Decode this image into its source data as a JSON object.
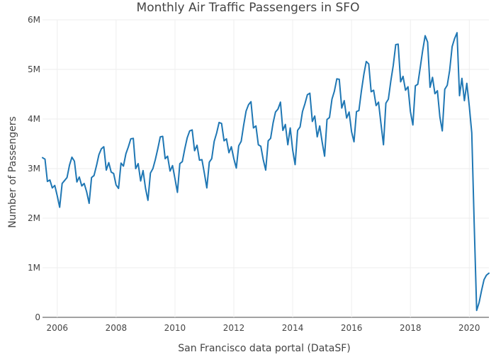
{
  "chart_data": {
    "type": "line",
    "title": "Monthly Air Traffic Passengers in SFO",
    "xlabel": "San Francisco data portal (DataSF)",
    "ylabel": "Number of Passengers",
    "xlim": [
      "2005-07",
      "2020-09"
    ],
    "ylim": [
      0,
      6000000
    ],
    "x_ticks": [
      {
        "value": "2006-01",
        "label": "2006"
      },
      {
        "value": "2008-01",
        "label": "2008"
      },
      {
        "value": "2010-01",
        "label": "2010"
      },
      {
        "value": "2012-01",
        "label": "2012"
      },
      {
        "value": "2014-01",
        "label": "2014"
      },
      {
        "value": "2016-01",
        "label": "2016"
      },
      {
        "value": "2018-01",
        "label": "2018"
      },
      {
        "value": "2020-01",
        "label": "2020"
      }
    ],
    "y_ticks": [
      {
        "value": 0,
        "label": "0"
      },
      {
        "value": 1000000,
        "label": "1M"
      },
      {
        "value": 2000000,
        "label": "2M"
      },
      {
        "value": 3000000,
        "label": "3M"
      },
      {
        "value": 4000000,
        "label": "4M"
      },
      {
        "value": 5000000,
        "label": "5M"
      },
      {
        "value": 6000000,
        "label": "6M"
      }
    ],
    "grid": true,
    "series": [
      {
        "color": "#1f77b4",
        "x": [
          "2005-07",
          "2005-08",
          "2005-09",
          "2005-10",
          "2005-11",
          "2005-12",
          "2006-01",
          "2006-02",
          "2006-03",
          "2006-04",
          "2006-05",
          "2006-06",
          "2006-07",
          "2006-08",
          "2006-09",
          "2006-10",
          "2006-11",
          "2006-12",
          "2007-01",
          "2007-02",
          "2007-03",
          "2007-04",
          "2007-05",
          "2007-06",
          "2007-07",
          "2007-08",
          "2007-09",
          "2007-10",
          "2007-11",
          "2007-12",
          "2008-01",
          "2008-02",
          "2008-03",
          "2008-04",
          "2008-05",
          "2008-06",
          "2008-07",
          "2008-08",
          "2008-09",
          "2008-10",
          "2008-11",
          "2008-12",
          "2009-01",
          "2009-02",
          "2009-03",
          "2009-04",
          "2009-05",
          "2009-06",
          "2009-07",
          "2009-08",
          "2009-09",
          "2009-10",
          "2009-11",
          "2009-12",
          "2010-01",
          "2010-02",
          "2010-03",
          "2010-04",
          "2010-05",
          "2010-06",
          "2010-07",
          "2010-08",
          "2010-09",
          "2010-10",
          "2010-11",
          "2010-12",
          "2011-01",
          "2011-02",
          "2011-03",
          "2011-04",
          "2011-05",
          "2011-06",
          "2011-07",
          "2011-08",
          "2011-09",
          "2011-10",
          "2011-11",
          "2011-12",
          "2012-01",
          "2012-02",
          "2012-03",
          "2012-04",
          "2012-05",
          "2012-06",
          "2012-07",
          "2012-08",
          "2012-09",
          "2012-10",
          "2012-11",
          "2012-12",
          "2013-01",
          "2013-02",
          "2013-03",
          "2013-04",
          "2013-05",
          "2013-06",
          "2013-07",
          "2013-08",
          "2013-09",
          "2013-10",
          "2013-11",
          "2013-12",
          "2014-01",
          "2014-02",
          "2014-03",
          "2014-04",
          "2014-05",
          "2014-06",
          "2014-07",
          "2014-08",
          "2014-09",
          "2014-10",
          "2014-11",
          "2014-12",
          "2015-01",
          "2015-02",
          "2015-03",
          "2015-04",
          "2015-05",
          "2015-06",
          "2015-07",
          "2015-08",
          "2015-09",
          "2015-10",
          "2015-11",
          "2015-12",
          "2016-01",
          "2016-02",
          "2016-03",
          "2016-04",
          "2016-05",
          "2016-06",
          "2016-07",
          "2016-08",
          "2016-09",
          "2016-10",
          "2016-11",
          "2016-12",
          "2017-01",
          "2017-02",
          "2017-03",
          "2017-04",
          "2017-05",
          "2017-06",
          "2017-07",
          "2017-08",
          "2017-09",
          "2017-10",
          "2017-11",
          "2017-12",
          "2018-01",
          "2018-02",
          "2018-03",
          "2018-04",
          "2018-05",
          "2018-06",
          "2018-07",
          "2018-08",
          "2018-09",
          "2018-10",
          "2018-11",
          "2018-12",
          "2019-01",
          "2019-02",
          "2019-03",
          "2019-04",
          "2019-05",
          "2019-06",
          "2019-07",
          "2019-08",
          "2019-09",
          "2019-10",
          "2019-11",
          "2019-12",
          "2020-01",
          "2020-02",
          "2020-03",
          "2020-04",
          "2020-05",
          "2020-06",
          "2020-07",
          "2020-08",
          "2020-09"
        ],
        "values": [
          3220000,
          3190000,
          2740000,
          2770000,
          2610000,
          2660000,
          2450000,
          2220000,
          2700000,
          2760000,
          2820000,
          3070000,
          3230000,
          3150000,
          2730000,
          2830000,
          2650000,
          2700000,
          2530000,
          2300000,
          2820000,
          2860000,
          3060000,
          3280000,
          3400000,
          3440000,
          2970000,
          3120000,
          2930000,
          2900000,
          2670000,
          2600000,
          3110000,
          3050000,
          3300000,
          3440000,
          3600000,
          3610000,
          3000000,
          3100000,
          2750000,
          2960000,
          2600000,
          2360000,
          2910000,
          3000000,
          3180000,
          3400000,
          3640000,
          3650000,
          3200000,
          3250000,
          2950000,
          3060000,
          2800000,
          2520000,
          3100000,
          3140000,
          3400000,
          3620000,
          3760000,
          3780000,
          3360000,
          3470000,
          3170000,
          3180000,
          2900000,
          2610000,
          3130000,
          3200000,
          3550000,
          3720000,
          3930000,
          3910000,
          3560000,
          3600000,
          3320000,
          3440000,
          3200000,
          3010000,
          3460000,
          3550000,
          3870000,
          4160000,
          4290000,
          4350000,
          3820000,
          3860000,
          3480000,
          3450000,
          3180000,
          2970000,
          3560000,
          3610000,
          3920000,
          4140000,
          4200000,
          4340000,
          3770000,
          3890000,
          3480000,
          3820000,
          3370000,
          3080000,
          3770000,
          3840000,
          4150000,
          4310000,
          4490000,
          4520000,
          3950000,
          4060000,
          3640000,
          3860000,
          3540000,
          3250000,
          3990000,
          4030000,
          4400000,
          4560000,
          4810000,
          4800000,
          4220000,
          4370000,
          4020000,
          4140000,
          3740000,
          3540000,
          4150000,
          4170000,
          4560000,
          4900000,
          5160000,
          5110000,
          4550000,
          4580000,
          4270000,
          4340000,
          3900000,
          3480000,
          4320000,
          4400000,
          4760000,
          5080000,
          5500000,
          5510000,
          4750000,
          4860000,
          4580000,
          4650000,
          4150000,
          3880000,
          4670000,
          4700000,
          5040000,
          5380000,
          5680000,
          5550000,
          4640000,
          4840000,
          4510000,
          4570000,
          4040000,
          3760000,
          4600000,
          4680000,
          4980000,
          5460000,
          5620000,
          5740000,
          4470000,
          4820000,
          4370000,
          4720000,
          4260000,
          3720000,
          1900000,
          140000,
          300000,
          540000,
          760000,
          850000,
          890000
        ]
      }
    ]
  }
}
